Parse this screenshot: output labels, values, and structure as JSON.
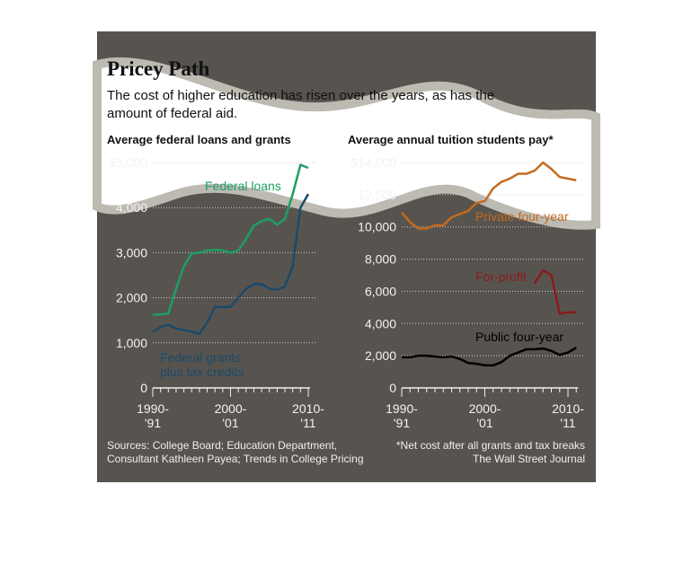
{
  "title": "Pricey Path",
  "subtitle": [
    "The cost of higher education has risen over the years, as has the",
    "amount of federal aid."
  ],
  "sources": [
    "Sources: College Board; Education Department,",
    "Consultant Kathleen Payea; Trends in College Pricing"
  ],
  "note": "*Net cost after all grants and tax breaks",
  "credit": "The Wall Street Journal",
  "chart_data": [
    {
      "type": "line",
      "title": "Average federal loans and grants",
      "x": [
        1990,
        1991,
        1992,
        1993,
        1994,
        1995,
        1996,
        1997,
        1998,
        1999,
        2000,
        2001,
        2002,
        2003,
        2004,
        2005,
        2006,
        2007,
        2008,
        2009,
        2010
      ],
      "xlim": [
        1990,
        2010
      ],
      "xticks": [
        {
          "value": 1990,
          "label": "1990-\n'91"
        },
        {
          "value": 2000,
          "label": "2000-\n'01"
        },
        {
          "value": 2010,
          "label": "2010-\n'11"
        }
      ],
      "ylim": [
        0,
        5000
      ],
      "yticks": [
        0,
        {
          "value": 1000,
          "label": "1,000"
        },
        {
          "value": 2000,
          "label": "2,000"
        },
        {
          "value": 3000,
          "label": "3,000"
        },
        {
          "value": 4000,
          "label": "4,000"
        },
        {
          "value": 5000,
          "label": "$5,000"
        }
      ],
      "grid": true,
      "series": [
        {
          "name": "Federal loans",
          "color": "#1e9e62",
          "values": [
            1620,
            1630,
            1650,
            2200,
            2700,
            2980,
            3000,
            3050,
            3060,
            3050,
            3000,
            3050,
            3300,
            3600,
            3700,
            3750,
            3620,
            3750,
            4300,
            4950,
            4880
          ]
        },
        {
          "name": "Federal grants\nplus tax credits",
          "color": "#1a4a6b",
          "values": [
            1250,
            1350,
            1400,
            1320,
            1280,
            1250,
            1200,
            1450,
            1800,
            1790,
            1800,
            2000,
            2200,
            2300,
            2300,
            2200,
            2180,
            2250,
            2700,
            4000,
            4300
          ]
        }
      ]
    },
    {
      "type": "line",
      "title": "Average annual tuition students pay*",
      "x": [
        1990,
        1991,
        1992,
        1993,
        1994,
        1995,
        1996,
        1997,
        1998,
        1999,
        2000,
        2001,
        2002,
        2003,
        2004,
        2005,
        2006,
        2007,
        2008,
        2009,
        2010,
        2011
      ],
      "xlim": [
        1990,
        2011
      ],
      "xticks": [
        {
          "value": 1990,
          "label": "1990-\n'91"
        },
        {
          "value": 2000,
          "label": "2000-\n'01"
        },
        {
          "value": 2010,
          "label": "2010-\n'11"
        }
      ],
      "ylim": [
        0,
        14000
      ],
      "yticks": [
        0,
        {
          "value": 2000,
          "label": "2,000"
        },
        {
          "value": 4000,
          "label": "4,000"
        },
        {
          "value": 6000,
          "label": "6,000"
        },
        {
          "value": 8000,
          "label": "8,000"
        },
        {
          "value": 10000,
          "label": "10,000"
        },
        {
          "value": 12000,
          "label": "12,000"
        },
        {
          "value": 14000,
          "label": "$14,000"
        }
      ],
      "grid": true,
      "series": [
        {
          "name": "Private four-year",
          "color": "#c46a1f",
          "values": [
            10900,
            10300,
            9900,
            9900,
            10100,
            10100,
            10600,
            10800,
            11000,
            11500,
            11600,
            12400,
            12800,
            13000,
            13300,
            13300,
            13500,
            14000,
            13600,
            13100,
            13000,
            12900
          ]
        },
        {
          "name": "For-profit",
          "color": "#8b1a1a",
          "values": [
            null,
            null,
            null,
            null,
            null,
            null,
            null,
            null,
            null,
            null,
            null,
            null,
            null,
            null,
            null,
            null,
            6500,
            7300,
            7000,
            4600,
            4700,
            4700
          ]
        },
        {
          "name": "Public four-year",
          "color": "#000000",
          "values": [
            1900,
            1900,
            2000,
            2000,
            1950,
            1900,
            1950,
            1800,
            1550,
            1500,
            1400,
            1400,
            1600,
            2000,
            2200,
            2400,
            2400,
            2450,
            2300,
            2050,
            2200,
            2500
          ]
        }
      ]
    }
  ]
}
